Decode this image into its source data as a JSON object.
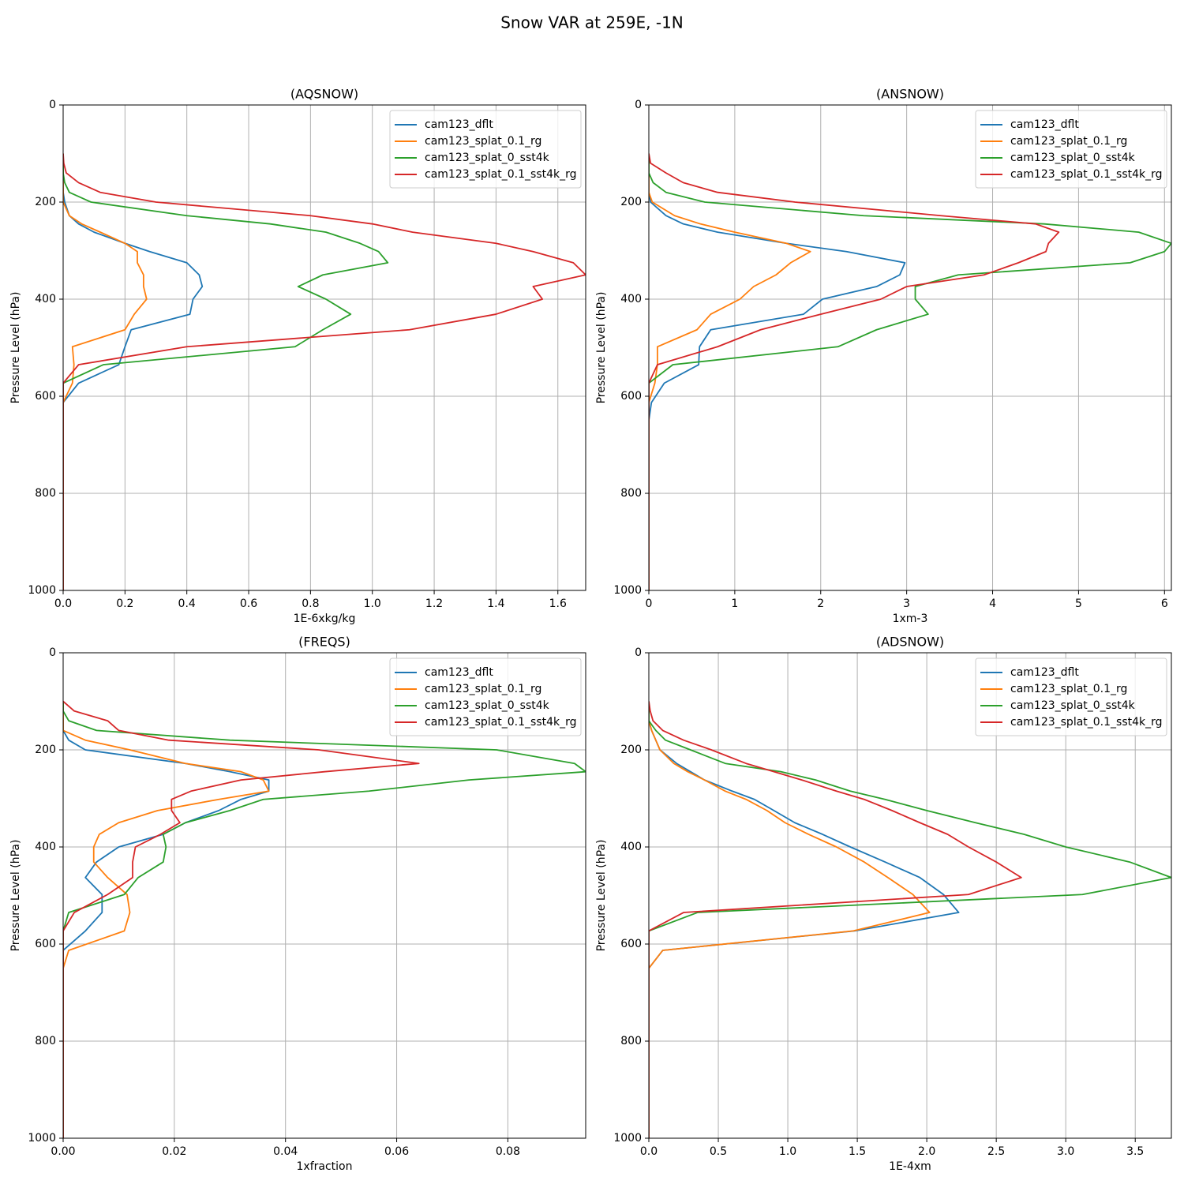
{
  "title": "Snow VAR at 259E, -1N",
  "chart_data": [
    {
      "type": "line",
      "title": "(AQSNOW)",
      "x_label": "1E-6xkg/kg",
      "y_label": "Pressure Level (hPa)",
      "y": [
        100,
        120,
        140,
        160,
        180,
        200,
        228,
        245,
        262,
        285,
        302,
        325,
        350,
        374,
        400,
        431,
        463,
        498,
        535,
        573,
        613,
        650,
        700,
        800,
        900,
        1000
      ],
      "xlim": [
        0,
        1.69
      ],
      "xticks": [
        {
          "value": 0,
          "label": "0.0"
        },
        0.2,
        0.4,
        0.6,
        0.8,
        {
          "value": 1,
          "label": "1.0"
        },
        1.2,
        1.4,
        1.6
      ],
      "ylim": [
        1000,
        0
      ],
      "yticks": [
        0,
        200,
        400,
        600,
        800,
        1000
      ],
      "grid": true,
      "legend": "upper-right",
      "series": [
        {
          "name": "cam123_dflt",
          "color": "#1f77b4",
          "values": [
            0,
            0,
            0,
            0,
            0,
            0.005,
            0.02,
            0.05,
            0.1,
            0.2,
            0.28,
            0.4,
            0.44,
            0.45,
            0.42,
            0.41,
            0.22,
            0.2,
            0.18,
            0.05,
            0,
            0,
            0,
            0,
            0,
            0
          ]
        },
        {
          "name": "cam123_splat_0.1_rg",
          "color": "#ff7f0e",
          "values": [
            0,
            0,
            0,
            0,
            0,
            0,
            0.02,
            0.06,
            0.12,
            0.2,
            0.24,
            0.24,
            0.26,
            0.26,
            0.27,
            0.23,
            0.2,
            0.03,
            0.035,
            0.03,
            0,
            0,
            0,
            0,
            0,
            0
          ]
        },
        {
          "name": "cam123_splat_0_sst4k",
          "color": "#2ca02c",
          "values": [
            0,
            0,
            0,
            0.005,
            0.02,
            0.09,
            0.4,
            0.67,
            0.85,
            0.96,
            1.02,
            1.05,
            0.84,
            0.76,
            0.85,
            0.93,
            0.84,
            0.75,
            0.13,
            0,
            0,
            0,
            0,
            0,
            0,
            0
          ]
        },
        {
          "name": "cam123_splat_0.1_sst4k_rg",
          "color": "#d62728",
          "values": [
            0,
            0.002,
            0.01,
            0.05,
            0.12,
            0.3,
            0.8,
            1.0,
            1.13,
            1.4,
            1.52,
            1.65,
            1.69,
            1.52,
            1.55,
            1.4,
            1.12,
            0.4,
            0.05,
            0,
            0,
            0,
            0,
            0,
            0,
            0
          ]
        }
      ]
    },
    {
      "type": "line",
      "title": "(ANSNOW)",
      "x_label": "1xm-3",
      "y_label": "Pressure Level (hPa)",
      "y": [
        100,
        120,
        140,
        160,
        180,
        200,
        228,
        245,
        262,
        285,
        302,
        325,
        350,
        374,
        400,
        431,
        463,
        498,
        535,
        573,
        613,
        650,
        700,
        800,
        900,
        1000
      ],
      "xlim": [
        0,
        6.08
      ],
      "xticks": [
        0,
        1,
        2,
        3,
        4,
        5,
        6
      ],
      "ylim": [
        1000,
        0
      ],
      "yticks": [
        0,
        200,
        400,
        600,
        800,
        1000
      ],
      "grid": true,
      "legend": "upper-right",
      "series": [
        {
          "name": "cam123_dflt",
          "color": "#1f77b4",
          "values": [
            0,
            0,
            0,
            0,
            0,
            0.02,
            0.2,
            0.4,
            0.8,
            1.6,
            2.3,
            2.98,
            2.92,
            2.65,
            2.02,
            1.8,
            0.72,
            0.59,
            0.58,
            0.18,
            0.03,
            0,
            0,
            0,
            0,
            0
          ]
        },
        {
          "name": "cam123_splat_0.1_rg",
          "color": "#ff7f0e",
          "values": [
            0,
            0,
            0,
            0,
            0,
            0.04,
            0.3,
            0.6,
            1.0,
            1.6,
            1.88,
            1.65,
            1.48,
            1.22,
            1.06,
            0.72,
            0.56,
            0.1,
            0.1,
            0.07,
            0,
            0,
            0,
            0,
            0,
            0
          ]
        },
        {
          "name": "cam123_splat_0_sst4k",
          "color": "#2ca02c",
          "values": [
            0,
            0,
            0,
            0.05,
            0.2,
            0.65,
            2.5,
            4.6,
            5.7,
            6.08,
            6.0,
            5.6,
            3.6,
            3.1,
            3.1,
            3.25,
            2.65,
            2.2,
            0.28,
            0,
            0,
            0,
            0,
            0,
            0,
            0
          ]
        },
        {
          "name": "cam123_splat_0.1_sst4k_rg",
          "color": "#d62728",
          "values": [
            0,
            0.02,
            0.2,
            0.4,
            0.8,
            1.7,
            3.4,
            4.5,
            4.77,
            4.65,
            4.62,
            4.3,
            3.9,
            3.0,
            2.7,
            2.0,
            1.3,
            0.8,
            0.1,
            0,
            0,
            0,
            0,
            0,
            0,
            0
          ]
        }
      ]
    },
    {
      "type": "line",
      "title": "(FREQS)",
      "x_label": "1xfraction",
      "y_label": "Pressure Level (hPa)",
      "y": [
        100,
        120,
        140,
        160,
        180,
        200,
        228,
        245,
        262,
        285,
        302,
        325,
        350,
        374,
        400,
        431,
        463,
        498,
        535,
        573,
        613,
        650,
        700,
        800,
        900,
        1000
      ],
      "xlim": [
        0,
        0.094
      ],
      "xticks": [
        {
          "value": 0,
          "label": "0.00"
        },
        0.02,
        0.04,
        0.06,
        0.08
      ],
      "ylim": [
        1000,
        0
      ],
      "yticks": [
        0,
        200,
        400,
        600,
        800,
        1000
      ],
      "grid": true,
      "legend": "upper-right",
      "series": [
        {
          "name": "cam123_dflt",
          "color": "#1f77b4",
          "values": [
            0,
            0,
            0,
            0,
            0.001,
            0.004,
            0.022,
            0.03,
            0.037,
            0.037,
            0.032,
            0.028,
            0.022,
            0.018,
            0.01,
            0.006,
            0.004,
            0.007,
            0.007,
            0.004,
            0,
            0,
            0,
            0,
            0,
            0
          ]
        },
        {
          "name": "cam123_splat_0.1_rg",
          "color": "#ff7f0e",
          "values": [
            0,
            0,
            0,
            0,
            0.004,
            0.012,
            0.022,
            0.032,
            0.036,
            0.037,
            0.028,
            0.017,
            0.01,
            0.0065,
            0.0055,
            0.0055,
            0.008,
            0.0115,
            0.012,
            0.011,
            0.001,
            0,
            0,
            0,
            0,
            0
          ]
        },
        {
          "name": "cam123_splat_0_sst4k",
          "color": "#2ca02c",
          "values": [
            0,
            0,
            0.001,
            0.006,
            0.03,
            0.078,
            0.092,
            0.094,
            0.073,
            0.055,
            0.036,
            0.03,
            0.022,
            0.018,
            0.0185,
            0.018,
            0.0135,
            0.011,
            0.001,
            0,
            0,
            0,
            0,
            0,
            0,
            0
          ]
        },
        {
          "name": "cam123_splat_0.1_sst4k_rg",
          "color": "#d62728",
          "values": [
            0,
            0.002,
            0.008,
            0.01,
            0.019,
            0.046,
            0.064,
            0.047,
            0.032,
            0.023,
            0.0195,
            0.0195,
            0.021,
            0.0175,
            0.013,
            0.0125,
            0.0125,
            0.008,
            0.002,
            0,
            0,
            0,
            0,
            0,
            0,
            0
          ]
        }
      ]
    },
    {
      "type": "line",
      "title": "(ADSNOW)",
      "x_label": "1E-4xm",
      "y_label": "Pressure Level (hPa)",
      "y": [
        100,
        120,
        140,
        160,
        180,
        200,
        228,
        245,
        262,
        285,
        302,
        325,
        350,
        374,
        400,
        431,
        463,
        498,
        535,
        573,
        613,
        650,
        700,
        800,
        900,
        1000
      ],
      "xlim": [
        0,
        3.76
      ],
      "xticks": [
        {
          "value": 0,
          "label": "0.0"
        },
        0.5,
        {
          "value": 1,
          "label": "1.0"
        },
        1.5,
        {
          "value": 2,
          "label": "2.0"
        },
        2.5,
        {
          "value": 3,
          "label": "3.0"
        },
        3.5
      ],
      "ylim": [
        1000,
        0
      ],
      "yticks": [
        0,
        200,
        400,
        600,
        800,
        1000
      ],
      "grid": true,
      "legend": "upper-right",
      "series": [
        {
          "name": "cam123_dflt",
          "color": "#1f77b4",
          "values": [
            0,
            0,
            0,
            0.02,
            0.05,
            0.08,
            0.2,
            0.3,
            0.4,
            0.6,
            0.76,
            0.9,
            1.05,
            1.25,
            1.45,
            1.7,
            1.95,
            2.12,
            2.23,
            1.48,
            0.1,
            0,
            0,
            0,
            0,
            0
          ]
        },
        {
          "name": "cam123_splat_0.1_rg",
          "color": "#ff7f0e",
          "values": [
            0,
            0,
            0,
            0.02,
            0.05,
            0.08,
            0.18,
            0.28,
            0.4,
            0.55,
            0.7,
            0.85,
            0.98,
            1.15,
            1.35,
            1.55,
            1.72,
            1.9,
            2.02,
            1.47,
            0.1,
            0,
            0,
            0,
            0,
            0
          ]
        },
        {
          "name": "cam123_splat_0_sst4k",
          "color": "#2ca02c",
          "values": [
            0,
            0,
            0,
            0.05,
            0.12,
            0.3,
            0.55,
            0.95,
            1.2,
            1.45,
            1.7,
            2.0,
            2.35,
            2.7,
            3.0,
            3.46,
            3.76,
            3.12,
            0.35,
            0,
            0,
            0,
            0,
            0,
            0,
            0
          ]
        },
        {
          "name": "cam123_splat_0.1_sst4k_rg",
          "color": "#d62728",
          "values": [
            0,
            0.01,
            0.03,
            0.1,
            0.25,
            0.45,
            0.7,
            0.9,
            1.1,
            1.35,
            1.55,
            1.75,
            1.95,
            2.15,
            2.3,
            2.5,
            2.68,
            2.3,
            0.25,
            0,
            0,
            0,
            0,
            0,
            0,
            0
          ]
        }
      ]
    }
  ]
}
